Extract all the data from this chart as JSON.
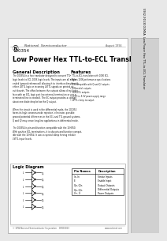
{
  "bg_color": "#e8e8e8",
  "page_bg": "#ffffff",
  "border_color": "#aaaaaa",
  "title_part": "100354",
  "title_main": "Low Power Hex TTL-to-ECL Translator",
  "section_general": "General Description",
  "section_features": "Features",
  "general_text": [
    "The 100354 is a hex translator designed to convert TTL",
    "logic levels to ECL 100K logic levels. The inputs are all single",
    "ended (ground referenced) allowing it to interface directly with",
    "either LSTTL logic or incoming LSTTL signals on printed cir-",
    "cuit boards. The offset between the outputs allows direct inter-",
    "face with an ECL logic port (no external termination or use a",
    "terminated line is needed). The EC output provides a voltage",
    "about one diode drop below the Q output.",
    "",
    "When the circuit is used in the differential mode, the 100354",
    "forms its high common-mode rejection; eliminates possible",
    "ground-potential differences in the ECL and TTL ground systems.",
    "Q and Q/ may sense long-line applications in differential mode.",
    "",
    "The 100354 is pin-and-function compatible with the 10H350.",
    "With positive ECL terminations, it is also pin-and-function compat-",
    "ible with the 10H354. It uses a special clamp forcing reliable",
    "LSTTL input levels."
  ],
  "features_text": [
    "TTL-to-ECL translation with 100K ECL",
    "Meets 100K performance specifications",
    "TTL-compatible with Q and Q/ outputs",
    "Differential outputs",
    "100K ECL outputs",
    "-4.5V to -5.5V power-supply range",
    "LSTTL clamp to output"
  ],
  "section_logic": "Logic Diagram",
  "pin_name_header": "Pin Names",
  "description_header": "Description",
  "pin_rows": [
    [
      "In, In",
      "Strobe Inputs"
    ],
    [
      "E",
      "Enable Input"
    ],
    [
      "Qn, Q/n",
      "Output Outputs"
    ],
    [
      "Qn, Q/n",
      "Differential Outputs"
    ],
    [
      "V+, V-",
      "Power Outputs"
    ]
  ],
  "sidebar_text": "5962-9153001MXA  Low Power Hex TTL-to-ECL Translator",
  "footer_left": "© 1994 National Semiconductor Corporation    DS010053",
  "footer_right": "www.national.com",
  "date_text": "August 1994"
}
